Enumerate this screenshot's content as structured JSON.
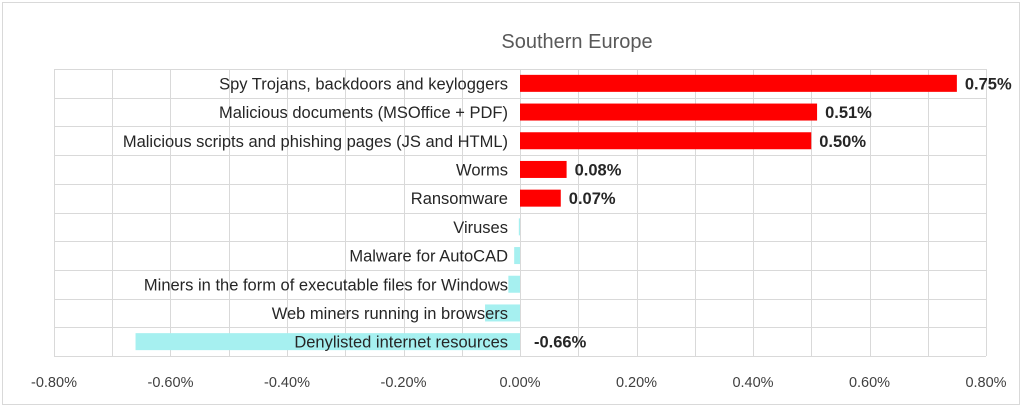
{
  "chart_data": {
    "type": "bar",
    "orientation": "horizontal",
    "title": "Southern Europe",
    "xlabel": "",
    "ylabel": "",
    "xlim": [
      -0.8,
      0.8
    ],
    "x_ticks": [
      "-0.80%",
      "-0.60%",
      "-0.40%",
      "-0.20%",
      "0.00%",
      "0.20%",
      "0.40%",
      "0.60%",
      "0.80%"
    ],
    "grid": true,
    "legend": "none",
    "categories": [
      "Spy Trojans, backdoors and keyloggers",
      "Malicious documents (MSOffice + PDF)",
      "Malicious scripts and phishing pages (JS and HTML)",
      "Worms",
      "Ransomware",
      "Viruses",
      "Malware for AutoCAD",
      "Miners in the form of executable files for Windows",
      "Web miners running in browsers",
      "Denylisted internet resources"
    ],
    "values": [
      0.75,
      0.51,
      0.5,
      0.08,
      0.07,
      -0.002,
      -0.01,
      -0.02,
      -0.06,
      -0.66
    ],
    "value_labels": [
      "0.75%",
      "0.51%",
      "0.50%",
      "0.08%",
      "0.07%",
      "",
      "",
      "",
      "",
      "-0.66%"
    ],
    "colors": {
      "positive": "#ff0000",
      "negative": "#a6f0f0",
      "grid": "#d9d9d9",
      "axis": "#bfbfbf"
    }
  }
}
